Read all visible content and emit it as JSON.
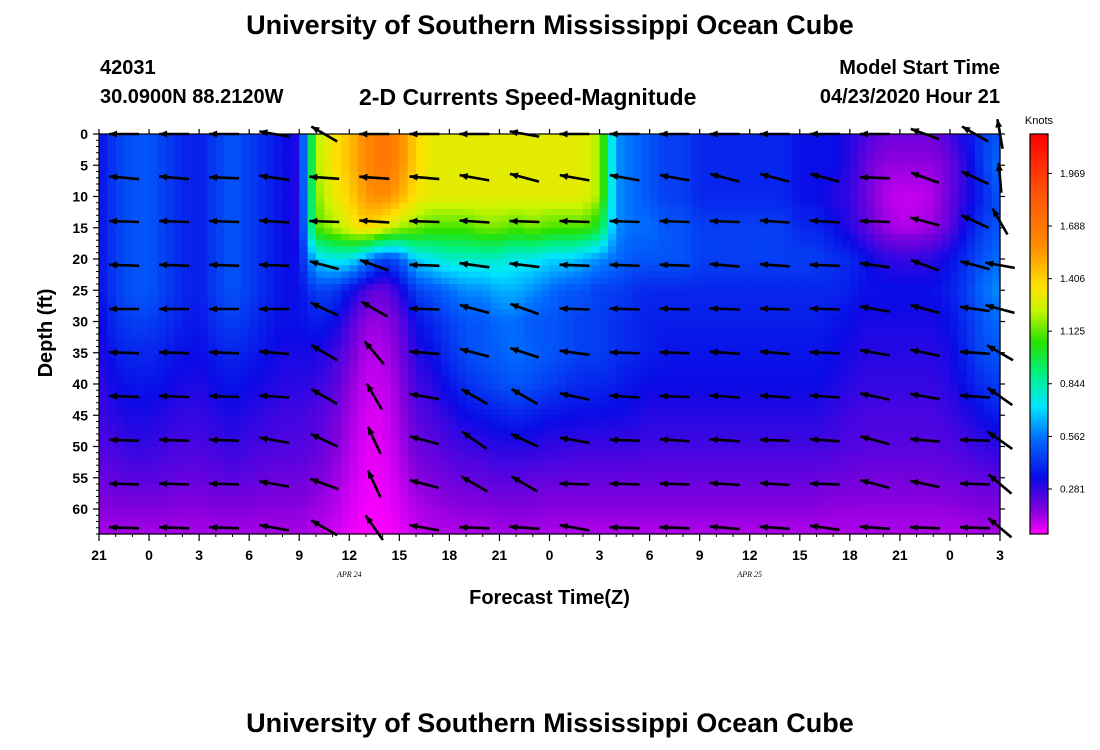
{
  "header": {
    "title": "University of Southern Mississippi Ocean Cube",
    "station_id": "42031",
    "coordinates": "30.0900N 88.2120W",
    "subtitle": "2-D Currents Speed-Magnitude",
    "model_start_label": "Model Start Time",
    "model_start_value": "04/23/2020 Hour 21"
  },
  "footer": {
    "title": "University of Southern Mississippi Ocean Cube"
  },
  "chart_data": {
    "type": "heatmap",
    "title": "2-D Currents Speed-Magnitude",
    "xlabel": "Forecast Time(Z)",
    "ylabel": "Depth (ft)",
    "x_ticks": [
      "21",
      "0",
      "3",
      "6",
      "9",
      "12",
      "15",
      "18",
      "21",
      "0",
      "3",
      "6",
      "9",
      "12",
      "15",
      "18",
      "21",
      "0",
      "3"
    ],
    "x_hours": [
      0,
      3,
      6,
      9,
      12,
      15,
      18,
      21,
      24,
      27,
      30,
      33,
      36,
      39,
      42,
      45,
      48,
      51,
      54
    ],
    "date_labels": [
      {
        "text": "APR 24",
        "hour": 15
      },
      {
        "text": "APR 25",
        "hour": 39
      }
    ],
    "y_ticks": [
      0,
      5,
      10,
      15,
      20,
      25,
      30,
      35,
      40,
      45,
      50,
      55,
      60
    ],
    "ylim": [
      0,
      64
    ],
    "xlim": [
      0,
      54
    ],
    "colorbar": {
      "label": "Knots",
      "ticks": [
        "0.281",
        "0.562",
        "0.844",
        "1.125",
        "1.406",
        "1.688",
        "1.969"
      ],
      "tick_values": [
        0.281,
        0.562,
        0.844,
        1.125,
        1.406,
        1.688,
        1.969
      ],
      "range": [
        0.04,
        2.18
      ]
    },
    "speed_x_hours": [
      0,
      1,
      2,
      3,
      4,
      5,
      6,
      7,
      8,
      9,
      10,
      11,
      12,
      13,
      14,
      15,
      16,
      17,
      18,
      19,
      20,
      21,
      22,
      23,
      24,
      25,
      26,
      27,
      28,
      29,
      30,
      31,
      32,
      33,
      34,
      35,
      36,
      37,
      38,
      39,
      40,
      41,
      42,
      43,
      44,
      45,
      46,
      47,
      48,
      49,
      50,
      51,
      52,
      53,
      54
    ],
    "speed_depths": [
      0,
      5,
      10,
      15,
      20,
      25,
      30,
      35,
      40,
      45,
      50,
      55,
      60,
      64
    ],
    "speed_knots": [
      [
        0.35,
        0.45,
        0.5,
        0.5,
        0.45,
        0.4,
        0.38,
        0.45,
        0.5,
        0.45,
        0.4,
        0.35,
        0.3,
        1.2,
        1.35,
        1.45,
        1.6,
        1.7,
        1.6,
        1.4,
        1.3,
        1.3,
        1.3,
        1.3,
        1.3,
        1.3,
        1.3,
        1.3,
        1.3,
        1.3,
        1.2,
        0.6,
        0.55,
        0.5,
        0.45,
        0.45,
        0.4,
        0.4,
        0.4,
        0.4,
        0.4,
        0.4,
        0.35,
        0.35,
        0.35,
        0.3,
        0.25,
        0.2,
        0.2,
        0.2,
        0.2,
        0.25,
        0.35,
        0.45,
        0.5
      ],
      [
        0.35,
        0.45,
        0.5,
        0.5,
        0.45,
        0.4,
        0.38,
        0.45,
        0.5,
        0.45,
        0.4,
        0.35,
        0.3,
        1.2,
        1.35,
        1.45,
        1.6,
        1.7,
        1.6,
        1.4,
        1.3,
        1.3,
        1.3,
        1.3,
        1.3,
        1.3,
        1.3,
        1.3,
        1.3,
        1.3,
        1.2,
        0.6,
        0.55,
        0.5,
        0.45,
        0.45,
        0.4,
        0.4,
        0.4,
        0.4,
        0.4,
        0.4,
        0.35,
        0.35,
        0.35,
        0.3,
        0.2,
        0.15,
        0.15,
        0.15,
        0.15,
        0.2,
        0.3,
        0.45,
        0.55
      ],
      [
        0.35,
        0.45,
        0.5,
        0.5,
        0.45,
        0.4,
        0.38,
        0.45,
        0.5,
        0.45,
        0.4,
        0.35,
        0.3,
        1.15,
        1.3,
        1.4,
        1.55,
        1.6,
        1.5,
        1.35,
        1.3,
        1.3,
        1.3,
        1.3,
        1.3,
        1.3,
        1.3,
        1.3,
        1.3,
        1.3,
        1.2,
        0.6,
        0.55,
        0.5,
        0.45,
        0.45,
        0.4,
        0.4,
        0.4,
        0.4,
        0.4,
        0.4,
        0.35,
        0.35,
        0.3,
        0.28,
        0.2,
        0.12,
        0.1,
        0.1,
        0.12,
        0.2,
        0.3,
        0.4,
        0.5
      ],
      [
        0.35,
        0.45,
        0.5,
        0.5,
        0.45,
        0.4,
        0.38,
        0.45,
        0.5,
        0.45,
        0.4,
        0.35,
        0.3,
        1.1,
        1.2,
        1.3,
        1.4,
        1.3,
        1.2,
        1.15,
        1.1,
        1.1,
        1.1,
        1.15,
        1.15,
        1.1,
        1.15,
        1.1,
        1.1,
        1.1,
        1.0,
        0.6,
        0.55,
        0.55,
        0.5,
        0.5,
        0.45,
        0.45,
        0.45,
        0.45,
        0.45,
        0.45,
        0.4,
        0.4,
        0.35,
        0.3,
        0.22,
        0.15,
        0.12,
        0.12,
        0.15,
        0.22,
        0.35,
        0.45,
        0.5
      ],
      [
        0.35,
        0.45,
        0.5,
        0.5,
        0.45,
        0.4,
        0.38,
        0.45,
        0.5,
        0.45,
        0.4,
        0.35,
        0.35,
        0.7,
        0.75,
        0.75,
        0.6,
        0.45,
        0.5,
        0.7,
        0.75,
        0.8,
        0.8,
        0.8,
        0.8,
        0.75,
        0.75,
        0.7,
        0.7,
        0.65,
        0.6,
        0.55,
        0.5,
        0.5,
        0.5,
        0.5,
        0.45,
        0.45,
        0.45,
        0.45,
        0.45,
        0.45,
        0.45,
        0.45,
        0.42,
        0.4,
        0.35,
        0.3,
        0.28,
        0.28,
        0.3,
        0.35,
        0.42,
        0.5,
        0.55
      ],
      [
        0.35,
        0.45,
        0.5,
        0.5,
        0.45,
        0.4,
        0.38,
        0.45,
        0.5,
        0.45,
        0.4,
        0.35,
        0.35,
        0.45,
        0.45,
        0.35,
        0.25,
        0.2,
        0.3,
        0.45,
        0.5,
        0.55,
        0.6,
        0.6,
        0.65,
        0.65,
        0.6,
        0.55,
        0.5,
        0.5,
        0.45,
        0.45,
        0.42,
        0.4,
        0.4,
        0.4,
        0.4,
        0.4,
        0.4,
        0.4,
        0.4,
        0.4,
        0.4,
        0.4,
        0.4,
        0.38,
        0.35,
        0.35,
        0.35,
        0.35,
        0.35,
        0.38,
        0.45,
        0.55,
        0.6
      ],
      [
        0.32,
        0.42,
        0.45,
        0.45,
        0.42,
        0.38,
        0.36,
        0.42,
        0.45,
        0.42,
        0.38,
        0.35,
        0.35,
        0.38,
        0.35,
        0.25,
        0.15,
        0.15,
        0.2,
        0.35,
        0.4,
        0.45,
        0.5,
        0.5,
        0.55,
        0.55,
        0.5,
        0.5,
        0.48,
        0.45,
        0.45,
        0.42,
        0.4,
        0.38,
        0.38,
        0.38,
        0.38,
        0.38,
        0.38,
        0.38,
        0.38,
        0.38,
        0.38,
        0.38,
        0.36,
        0.34,
        0.32,
        0.32,
        0.32,
        0.32,
        0.32,
        0.35,
        0.42,
        0.5,
        0.55
      ],
      [
        0.3,
        0.38,
        0.4,
        0.4,
        0.38,
        0.35,
        0.34,
        0.38,
        0.4,
        0.38,
        0.35,
        0.32,
        0.32,
        0.32,
        0.28,
        0.2,
        0.12,
        0.12,
        0.18,
        0.3,
        0.35,
        0.42,
        0.48,
        0.5,
        0.52,
        0.55,
        0.52,
        0.5,
        0.48,
        0.45,
        0.45,
        0.42,
        0.4,
        0.38,
        0.36,
        0.36,
        0.36,
        0.36,
        0.36,
        0.36,
        0.36,
        0.36,
        0.36,
        0.36,
        0.34,
        0.32,
        0.3,
        0.3,
        0.3,
        0.3,
        0.3,
        0.32,
        0.4,
        0.48,
        0.5
      ],
      [
        0.28,
        0.34,
        0.36,
        0.36,
        0.34,
        0.32,
        0.31,
        0.34,
        0.36,
        0.34,
        0.32,
        0.3,
        0.3,
        0.28,
        0.24,
        0.16,
        0.1,
        0.1,
        0.15,
        0.26,
        0.3,
        0.36,
        0.42,
        0.45,
        0.48,
        0.5,
        0.48,
        0.45,
        0.42,
        0.4,
        0.4,
        0.38,
        0.36,
        0.34,
        0.34,
        0.34,
        0.34,
        0.34,
        0.34,
        0.34,
        0.34,
        0.34,
        0.34,
        0.34,
        0.32,
        0.3,
        0.28,
        0.28,
        0.28,
        0.28,
        0.28,
        0.3,
        0.36,
        0.42,
        0.45
      ],
      [
        0.26,
        0.3,
        0.32,
        0.32,
        0.3,
        0.28,
        0.28,
        0.3,
        0.32,
        0.3,
        0.28,
        0.26,
        0.26,
        0.24,
        0.2,
        0.14,
        0.08,
        0.08,
        0.14,
        0.22,
        0.26,
        0.3,
        0.34,
        0.36,
        0.38,
        0.4,
        0.38,
        0.36,
        0.35,
        0.34,
        0.34,
        0.33,
        0.32,
        0.3,
        0.3,
        0.3,
        0.3,
        0.3,
        0.3,
        0.3,
        0.3,
        0.3,
        0.3,
        0.3,
        0.28,
        0.26,
        0.25,
        0.25,
        0.25,
        0.25,
        0.25,
        0.27,
        0.3,
        0.35,
        0.38
      ],
      [
        0.24,
        0.26,
        0.28,
        0.28,
        0.26,
        0.25,
        0.25,
        0.26,
        0.28,
        0.26,
        0.25,
        0.24,
        0.24,
        0.22,
        0.18,
        0.12,
        0.07,
        0.07,
        0.12,
        0.2,
        0.22,
        0.25,
        0.27,
        0.28,
        0.3,
        0.3,
        0.3,
        0.28,
        0.28,
        0.27,
        0.27,
        0.27,
        0.27,
        0.26,
        0.26,
        0.26,
        0.26,
        0.26,
        0.26,
        0.26,
        0.26,
        0.26,
        0.26,
        0.26,
        0.25,
        0.24,
        0.23,
        0.23,
        0.23,
        0.23,
        0.23,
        0.24,
        0.26,
        0.28,
        0.3
      ],
      [
        0.2,
        0.22,
        0.23,
        0.23,
        0.22,
        0.21,
        0.21,
        0.22,
        0.23,
        0.22,
        0.21,
        0.2,
        0.2,
        0.18,
        0.15,
        0.1,
        0.06,
        0.06,
        0.1,
        0.16,
        0.18,
        0.2,
        0.21,
        0.22,
        0.23,
        0.23,
        0.22,
        0.22,
        0.21,
        0.21,
        0.21,
        0.21,
        0.21,
        0.21,
        0.21,
        0.21,
        0.21,
        0.21,
        0.21,
        0.21,
        0.21,
        0.21,
        0.21,
        0.21,
        0.2,
        0.2,
        0.19,
        0.19,
        0.19,
        0.19,
        0.19,
        0.2,
        0.21,
        0.22,
        0.23
      ],
      [
        0.16,
        0.17,
        0.17,
        0.17,
        0.17,
        0.16,
        0.16,
        0.17,
        0.17,
        0.17,
        0.16,
        0.16,
        0.16,
        0.14,
        0.12,
        0.08,
        0.05,
        0.05,
        0.08,
        0.12,
        0.14,
        0.15,
        0.16,
        0.16,
        0.17,
        0.17,
        0.17,
        0.16,
        0.16,
        0.16,
        0.16,
        0.16,
        0.16,
        0.16,
        0.16,
        0.16,
        0.16,
        0.16,
        0.16,
        0.16,
        0.16,
        0.16,
        0.16,
        0.16,
        0.15,
        0.15,
        0.15,
        0.15,
        0.15,
        0.15,
        0.15,
        0.15,
        0.16,
        0.17,
        0.17
      ],
      [
        0.13,
        0.13,
        0.13,
        0.13,
        0.13,
        0.13,
        0.13,
        0.13,
        0.13,
        0.13,
        0.13,
        0.13,
        0.13,
        0.11,
        0.09,
        0.06,
        0.04,
        0.04,
        0.06,
        0.1,
        0.11,
        0.12,
        0.12,
        0.12,
        0.13,
        0.13,
        0.13,
        0.12,
        0.12,
        0.12,
        0.12,
        0.12,
        0.12,
        0.12,
        0.12,
        0.12,
        0.12,
        0.12,
        0.12,
        0.12,
        0.12,
        0.12,
        0.12,
        0.12,
        0.12,
        0.12,
        0.12,
        0.12,
        0.12,
        0.12,
        0.12,
        0.12,
        0.12,
        0.13,
        0.13
      ]
    ],
    "vector_x_hours": [
      1.5,
      4.5,
      7.5,
      10.5,
      13.5,
      16.5,
      19.5,
      22.5,
      25.5,
      28.5,
      31.5,
      34.5,
      37.5,
      40.5,
      43.5,
      46.5,
      49.5,
      52.5,
      54
    ],
    "vector_depths": [
      0,
      7,
      14,
      21,
      28,
      35,
      42,
      49,
      56,
      63
    ],
    "vector_angles_deg": [
      [
        180,
        180,
        180,
        170,
        150,
        180,
        180,
        180,
        170,
        180,
        180,
        180,
        180,
        180,
        180,
        180,
        160,
        150,
        100
      ],
      [
        175,
        175,
        178,
        172,
        176,
        176,
        175,
        170,
        165,
        170,
        170,
        170,
        165,
        165,
        165,
        178,
        160,
        155,
        95
      ],
      [
        178,
        178,
        178,
        176,
        178,
        176,
        178,
        176,
        178,
        178,
        178,
        178,
        178,
        176,
        176,
        178,
        165,
        155,
        120
      ],
      [
        178,
        178,
        178,
        178,
        165,
        160,
        178,
        172,
        173,
        178,
        178,
        178,
        175,
        176,
        178,
        172,
        160,
        165,
        170
      ],
      [
        180,
        180,
        180,
        180,
        155,
        150,
        178,
        165,
        160,
        178,
        178,
        178,
        178,
        178,
        178,
        170,
        165,
        172,
        165
      ],
      [
        178,
        178,
        178,
        175,
        150,
        130,
        175,
        165,
        162,
        172,
        178,
        178,
        176,
        175,
        178,
        170,
        168,
        176,
        150
      ],
      [
        178,
        178,
        178,
        176,
        150,
        120,
        170,
        150,
        150,
        168,
        176,
        178,
        176,
        176,
        176,
        168,
        170,
        176,
        145
      ],
      [
        178,
        178,
        178,
        170,
        155,
        115,
        165,
        145,
        155,
        170,
        178,
        176,
        176,
        178,
        176,
        165,
        175,
        178,
        145
      ],
      [
        178,
        178,
        178,
        170,
        160,
        115,
        165,
        150,
        150,
        178,
        178,
        178,
        176,
        176,
        178,
        165,
        168,
        178,
        140
      ],
      [
        178,
        178,
        178,
        170,
        150,
        125,
        170,
        178,
        176,
        170,
        178,
        178,
        175,
        176,
        172,
        176,
        178,
        178,
        140
      ]
    ]
  }
}
